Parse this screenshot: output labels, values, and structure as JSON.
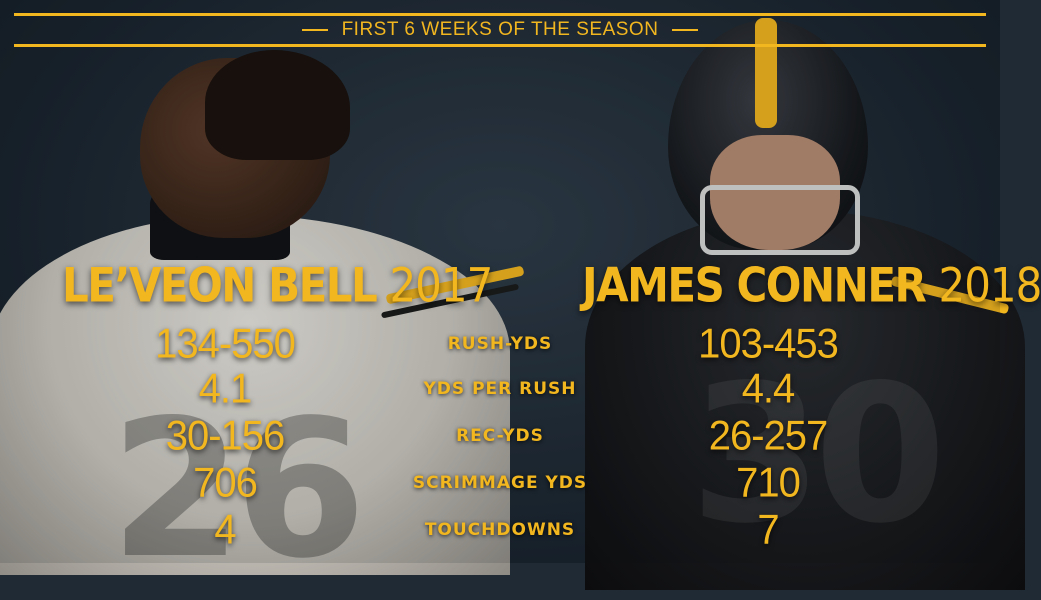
{
  "header": {
    "title": "FIRST 6 WEEKS OF THE SEASON"
  },
  "colors": {
    "accent": "#f2b61f",
    "background": "#1f2a35"
  },
  "players": {
    "left": {
      "name": "LE’VEON BELL",
      "year": "2017",
      "jersey": "26"
    },
    "right": {
      "name": "JAMES CONNER",
      "year": "2018",
      "jersey": "30"
    }
  },
  "stats": [
    {
      "label": "RUSH-YDS",
      "left": "134-550",
      "right": "103-453"
    },
    {
      "label": "YDS PER RUSH",
      "left": "4.1",
      "right": "4.4"
    },
    {
      "label": "REC-YDS",
      "left": "30-156",
      "right": "26-257"
    },
    {
      "label": "SCRIMMAGE YDS",
      "left": "706",
      "right": "710"
    },
    {
      "label": "TOUCHDOWNS",
      "left": "4",
      "right": "7"
    }
  ]
}
